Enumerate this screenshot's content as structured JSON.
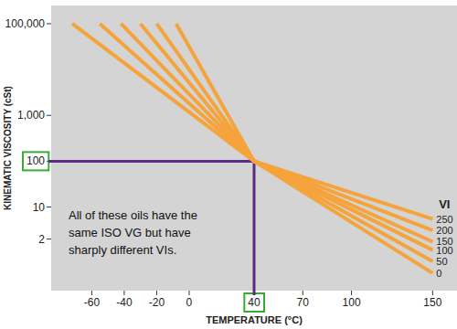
{
  "chart_data": {
    "type": "line",
    "x_label": "TEMPERATURE (°C)",
    "y_label": "KINEMATIC VISCOSITY (cSt)",
    "annotation": "All of these oils have the same ISO VG but have sharply different VIs.",
    "legend_title": "VI",
    "log": "y",
    "grid": false,
    "color": "#f5a33b",
    "xlim": [
      -85,
      165
    ],
    "ylim": [
      0.15,
      250000
    ],
    "xticks": [
      -60,
      -40,
      -20,
      0,
      40,
      70,
      100,
      150
    ],
    "yticks": [
      2,
      10,
      100,
      {
        "value": 1000,
        "label": "1,000"
      },
      {
        "value": 100000,
        "label": "100,000"
      }
    ],
    "reference_point": {
      "x": 40,
      "y": 100
    },
    "series": [
      {
        "name": "250",
        "x": [
          -72,
          40,
          150
        ],
        "values": [
          100000,
          100,
          5.5
        ]
      },
      {
        "name": "200",
        "x": [
          -55,
          40,
          150
        ],
        "values": [
          100000,
          100,
          3.1
        ]
      },
      {
        "name": "150",
        "x": [
          -42,
          40,
          150
        ],
        "values": [
          100000,
          100,
          1.75
        ]
      },
      {
        "name": "100",
        "x": [
          -30,
          40,
          150
        ],
        "values": [
          100000,
          100,
          1.15
        ]
      },
      {
        "name": "50",
        "x": [
          -20,
          40,
          150
        ],
        "values": [
          100000,
          100,
          0.65
        ]
      },
      {
        "name": "0",
        "x": [
          -8,
          40,
          150
        ],
        "values": [
          100000,
          100,
          0.36
        ]
      }
    ]
  }
}
